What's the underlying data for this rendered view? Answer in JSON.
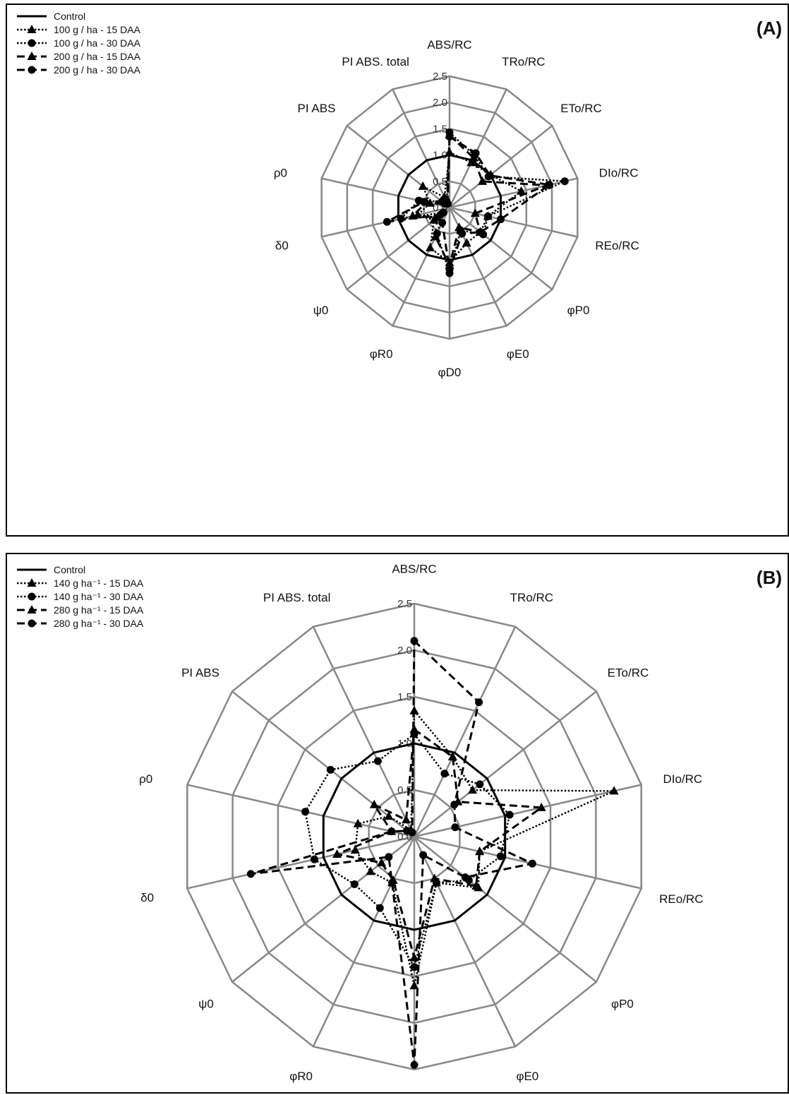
{
  "chart_data": [
    {
      "type": "radar",
      "panel_label": "(A)",
      "axes": [
        "ABS/RC",
        "TRo/RC",
        "ETo/RC",
        "DIo/RC",
        "REo/RC",
        "φP0",
        "φE0",
        "φD0",
        "φR0",
        "ψ0",
        "δ0",
        "ρ0",
        "PI ABS",
        "PI ABS. total"
      ],
      "rlim": [
        0,
        2.5
      ],
      "ticks": [
        "0.0",
        "0.5",
        "1.0",
        "1.5",
        "2.0",
        "2.5"
      ],
      "tick_values": [
        0,
        0.5,
        1.0,
        1.5,
        2.0,
        2.5
      ],
      "grid": true,
      "legend_position": "top-left",
      "series": [
        {
          "name": "Control",
          "line": "solid",
          "marker": "none",
          "values": [
            1,
            1,
            1,
            1,
            1,
            1,
            1,
            1,
            1,
            1,
            1,
            1,
            1,
            1
          ]
        },
        {
          "name": "100 g / ha -  15 DAA",
          "line": "dotted",
          "marker": "triangle",
          "values": [
            1.05,
            0.95,
            1.0,
            1.4,
            0.75,
            0.75,
            0.75,
            1.05,
            0.85,
            0.38,
            0.62,
            0.38,
            0.65,
            0.22
          ]
        },
        {
          "name": "100 g / ha -  30 DAA",
          "line": "dotted",
          "marker": "circle",
          "values": [
            1.43,
            1.1,
            0.95,
            2.25,
            0.75,
            0.82,
            0.48,
            1.25,
            0.55,
            0.15,
            0.95,
            0.6,
            0.18,
            0.12
          ]
        },
        {
          "name": "200 g / ha -  15 DAA",
          "line": "dashed",
          "marker": "triangle",
          "values": [
            1.38,
            1.05,
            0.8,
            1.9,
            0.5,
            0.75,
            0.42,
            1.1,
            0.62,
            0.3,
            0.72,
            0.45,
            0.2,
            0.1
          ]
        },
        {
          "name": "200 g / ha -  30 DAA",
          "line": "dashed",
          "marker": "circle",
          "values": [
            1.35,
            1.15,
            0.98,
            1.95,
            1.0,
            0.75,
            0.55,
            1.18,
            0.32,
            0.22,
            1.22,
            0.5,
            0.12,
            0.08
          ]
        }
      ]
    },
    {
      "type": "radar",
      "panel_label": "(B)",
      "axes": [
        "ABS/RC",
        "TRo/RC",
        "ETo/RC",
        "DIo/RC",
        "REo/RC",
        "φP0",
        "φE0",
        "φD0",
        "φR0",
        "ψ0",
        "δ0",
        "ρ0",
        "PI ABS",
        "PI ABS. total"
      ],
      "rlim": [
        0,
        2.5
      ],
      "ticks": [
        "0.0",
        "0.5",
        "1.0",
        "1.5",
        "2.0",
        "2.5"
      ],
      "tick_values": [
        0,
        0.5,
        1.0,
        1.5,
        2.0,
        2.5
      ],
      "grid": true,
      "legend_position": "top-left",
      "series": [
        {
          "name": "Control",
          "line": "solid",
          "marker": "none",
          "values": [
            1,
            1,
            1,
            1,
            1,
            1,
            1,
            1,
            1,
            1,
            1,
            1,
            1,
            1
          ]
        },
        {
          "name": "140 g ha⁻¹ - 15 DAA",
          "line": "dotted",
          "marker": "triangle",
          "values": [
            1.35,
            0.95,
            0.8,
            2.2,
            0.72,
            0.88,
            0.55,
            1.6,
            0.55,
            0.6,
            0.65,
            0.62,
            0.35,
            0.08
          ]
        },
        {
          "name": "140 g ha⁻¹ - 30 DAA",
          "line": "dotted",
          "marker": "circle",
          "values": [
            1.1,
            0.75,
            0.9,
            1.05,
            0.95,
            0.75,
            0.55,
            1.4,
            0.85,
            0.82,
            1.1,
            1.2,
            1.15,
            0.9
          ]
        },
        {
          "name": "280 g ha⁻¹ - 15 DAA",
          "line": "dashed",
          "marker": "triangle",
          "values": [
            1.15,
            0.95,
            0.6,
            1.4,
            0.72,
            0.85,
            0.5,
            1.3,
            0.52,
            0.45,
            0.85,
            0.25,
            0.55,
            0.2
          ]
        },
        {
          "name": "280 g ha⁻¹  - 30 DAA",
          "line": "dashed",
          "marker": "circle",
          "values": [
            2.1,
            1.6,
            0.55,
            0.45,
            1.3,
            0.7,
            0.22,
            2.45,
            0.55,
            0.35,
            1.8,
            0.25,
            0.1,
            0.05
          ]
        }
      ]
    }
  ]
}
